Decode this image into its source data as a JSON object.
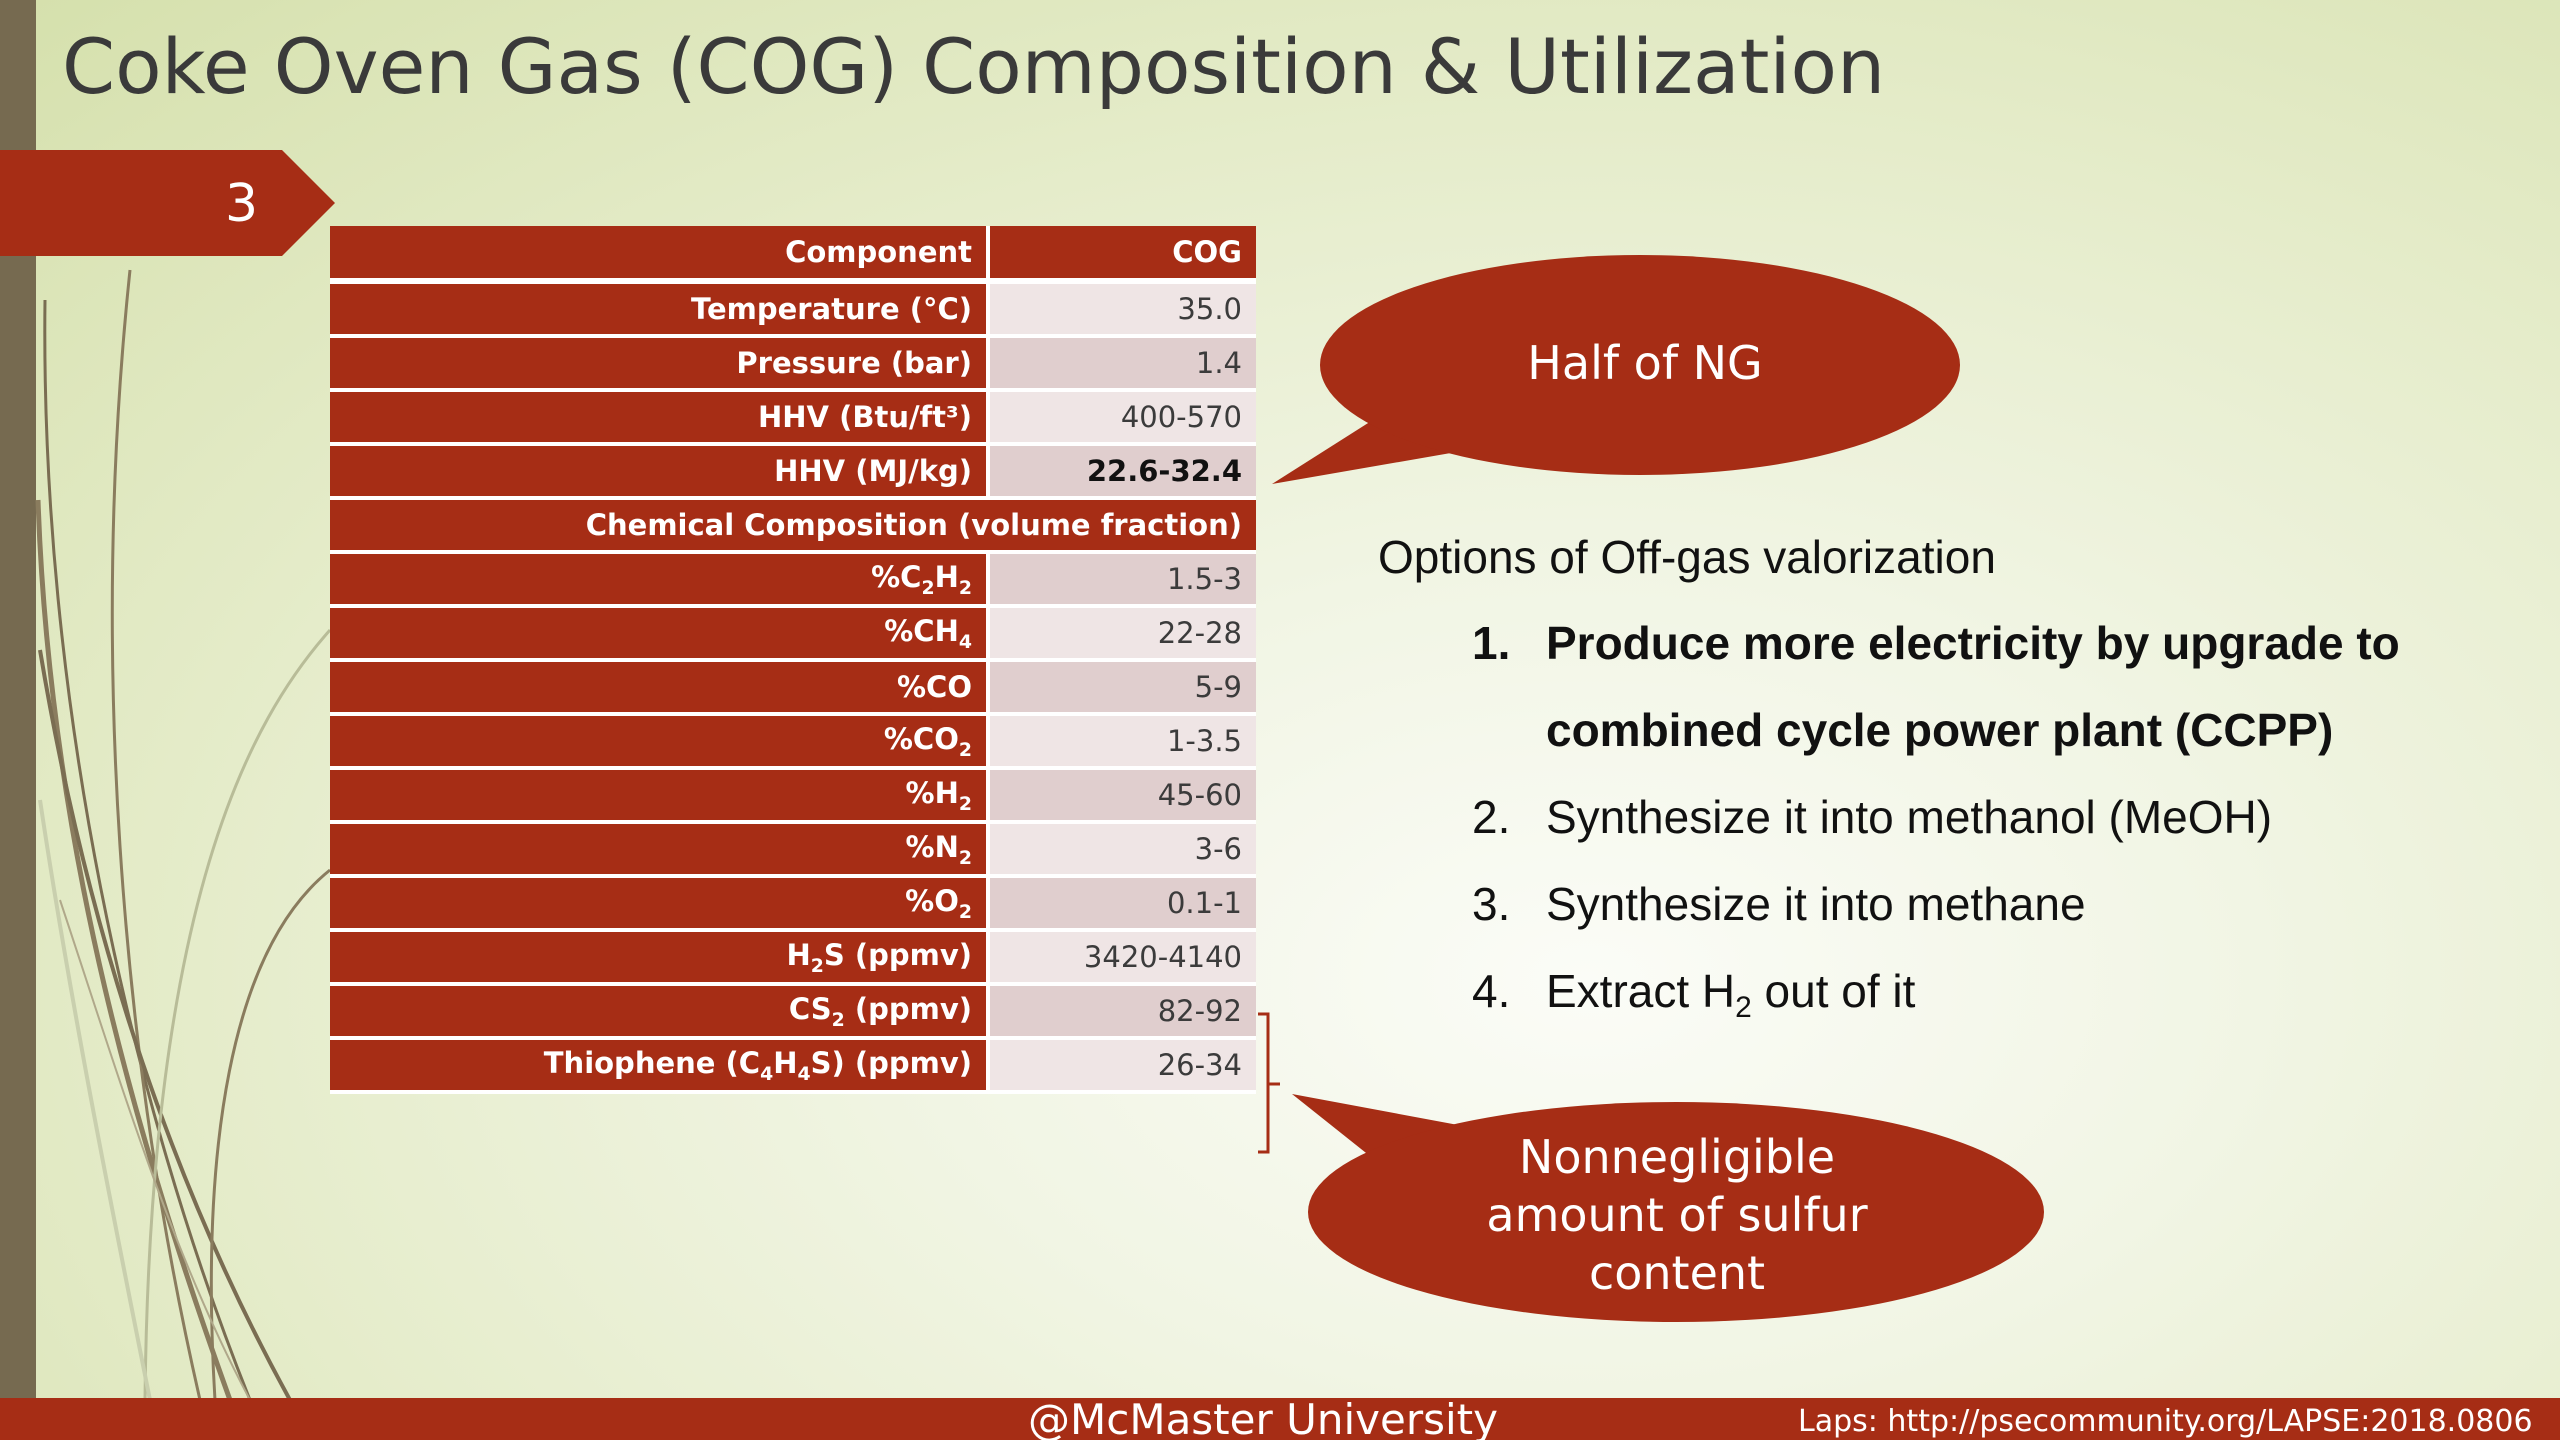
{
  "slide": {
    "title": "Coke Oven Gas (COG) Composition & Utilization",
    "number": "3"
  },
  "table": {
    "headers": [
      "Component",
      "COG"
    ],
    "section_header": "Chemical Composition (volume fraction)",
    "rows": [
      {
        "label": "Temperature (°C)",
        "value": "35.0"
      },
      {
        "label": "Pressure (bar)",
        "value": "1.4"
      },
      {
        "label": "HHV (Btu/ft³)",
        "value": "400-570"
      },
      {
        "label": "HHV (MJ/kg)",
        "value": "22.6-32.4"
      },
      {
        "label_pre": "%C",
        "sub1": "2",
        "mid": "H",
        "sub2": "2",
        "value": "1.5-3"
      },
      {
        "label_pre": "%CH",
        "sub1": "4",
        "value": "22-28"
      },
      {
        "label": "%CO",
        "value": "5-9"
      },
      {
        "label_pre": "%CO",
        "sub1": "2",
        "value": "1-3.5"
      },
      {
        "label_pre": "%H",
        "sub1": "2",
        "value": "45-60"
      },
      {
        "label_pre": "%N",
        "sub1": "2",
        "value": "3-6"
      },
      {
        "label_pre": "%O",
        "sub1": "2",
        "value": "0.1-1"
      },
      {
        "label_pre": "H",
        "sub1": "2",
        "post": "S (ppmv)",
        "value": "3420-4140"
      },
      {
        "label_pre": "CS",
        "sub1": "2",
        "post": " (ppmv)",
        "value": "82-92"
      },
      {
        "label_pre": "Thiophene (C",
        "sub1": "4",
        "mid": "H",
        "sub2": "4",
        "post": "S) (ppmv)",
        "value": "26-34"
      }
    ]
  },
  "callouts": {
    "half_ng": "Half of NG",
    "sulfur_line1": "Nonnegligible",
    "sulfur_line2": "amount of sulfur",
    "sulfur_line3": "content"
  },
  "options": {
    "heading": "Options of Off-gas valorization",
    "items": [
      {
        "num": "1.",
        "line1": "Produce more electricity by upgrade to",
        "line2": "combined cycle power plant (CCPP)"
      },
      {
        "num": "2.",
        "text": "Synthesize it into methanol (MeOH)"
      },
      {
        "num": "3.",
        "text": "Synthesize it into methane"
      },
      {
        "num": "4.",
        "pre": "Extract H",
        "sub": "2",
        "post": " out of it"
      }
    ]
  },
  "footer": {
    "center": "@McMaster University",
    "right": "Laps: http://psecommunity.org/LAPSE:2018.0806"
  },
  "colors": {
    "accent": "#a62d15",
    "left_bar": "#766a50",
    "title_text": "#3a3a3a"
  }
}
